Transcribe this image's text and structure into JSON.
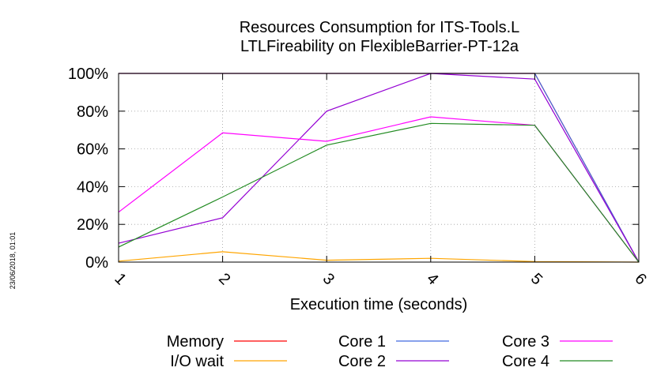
{
  "chart_data": {
    "type": "line",
    "title": "Resources Consumption for ITS-Tools.L",
    "subtitle": "LTLFireability on FlexibleBarrier-PT-12a",
    "xlabel": "Execution time (seconds)",
    "ylabel": "",
    "xlim": [
      1,
      6
    ],
    "ylim": [
      0,
      100
    ],
    "x_ticks": [
      "1",
      "2",
      "3",
      "4",
      "5",
      "6"
    ],
    "y_ticks": [
      "0%",
      "20%",
      "40%",
      "60%",
      "80%",
      "100%"
    ],
    "grid": true,
    "legend_position": "bottom",
    "x": [
      1,
      2,
      3,
      4,
      5,
      6
    ],
    "series": [
      {
        "name": "Memory",
        "color": "#ff0000",
        "values": [
          100,
          100,
          100,
          100,
          100,
          0
        ]
      },
      {
        "name": "I/O wait",
        "color": "#ffa500",
        "values": [
          0.5,
          5.5,
          1,
          2,
          0.3,
          0
        ]
      },
      {
        "name": "Core 1",
        "color": "#4169e1",
        "values": [
          100,
          100,
          100,
          100,
          100,
          0
        ]
      },
      {
        "name": "Core 2",
        "color": "#9400d3",
        "values": [
          10,
          23.5,
          80,
          100,
          97,
          0
        ]
      },
      {
        "name": "Core 3",
        "color": "#ff00ff",
        "values": [
          26.5,
          68.5,
          64,
          77,
          72.5,
          0
        ]
      },
      {
        "name": "Core 4",
        "color": "#228b22",
        "values": [
          8,
          34.5,
          62,
          73.5,
          72.5,
          0
        ]
      }
    ]
  },
  "side_note": "23/06/2018, 01:01"
}
